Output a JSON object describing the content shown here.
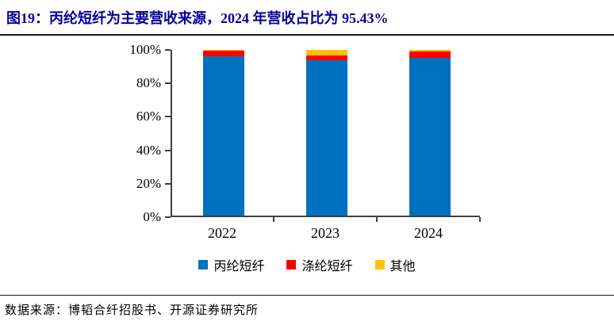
{
  "header": {
    "title": "图19：丙纶短纤为主要营收来源，2024 年营收占比为 95.43%"
  },
  "chart_data": {
    "type": "bar",
    "stacked": true,
    "unit": "%",
    "title": "",
    "xlabel": "",
    "ylabel": "",
    "categories": [
      "2022",
      "2023",
      "2024"
    ],
    "series": [
      {
        "name": "丙纶短纤",
        "color": "#0070C0",
        "values": [
          96.0,
          93.6,
          95.43
        ]
      },
      {
        "name": "涤纶短纤",
        "color": "#FF0000",
        "values": [
          3.6,
          3.2,
          3.5
        ]
      },
      {
        "name": "其他",
        "color": "#FFC000",
        "values": [
          0.4,
          3.2,
          1.07
        ]
      }
    ],
    "ylim": [
      0,
      100
    ],
    "y_ticks": [
      "0%",
      "20%",
      "40%",
      "60%",
      "80%",
      "100%"
    ],
    "grid": false,
    "legend_position": "bottom"
  },
  "footer": {
    "source": "数据来源：博韬合纤招股书、开源证券研究所"
  }
}
